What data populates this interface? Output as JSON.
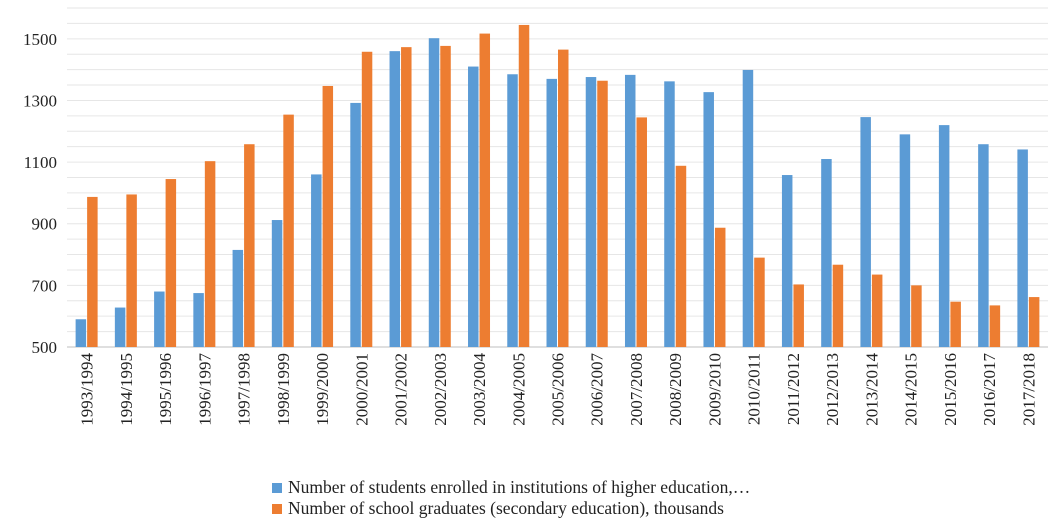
{
  "chart_data": {
    "type": "bar",
    "categories": [
      "1993/1994",
      "1994/1995",
      "1995/1996",
      "1996/1997",
      "1997/1998",
      "1998/1999",
      "1999/2000",
      "2000/2001",
      "2001/2002",
      "2002/2003",
      "2003/2004",
      "2004/2005",
      "2005/2006",
      "2006/2007",
      "2007/2008",
      "2008/2009",
      "2009/2010",
      "2010/2011",
      "2011/2012",
      "2012/2013",
      "2013/2014",
      "2014/2015",
      "2015/2016",
      "2016/2017",
      "2017/2018"
    ],
    "series": [
      {
        "name": "Number of students enrolled in institutions of higher education,…",
        "color": "#5B9BD5",
        "values": [
          590,
          628,
          680,
          675,
          815,
          912,
          1060,
          1292,
          1460,
          1502,
          1410,
          1385,
          1370,
          1376,
          1383,
          1362,
          1327,
          1399,
          1058,
          1110,
          1246,
          1190,
          1220,
          1158,
          1141
        ]
      },
      {
        "name": "Number of school graduates (secondary education), thousands",
        "color": "#ED7D31",
        "values": [
          987,
          995,
          1045,
          1103,
          1158,
          1254,
          1347,
          1458,
          1473,
          1477,
          1517,
          1545,
          1465,
          1364,
          1245,
          1088,
          887,
          790,
          703,
          767,
          735,
          700,
          647,
          635,
          662
        ]
      }
    ],
    "y_ticks": [
      "500",
      "700",
      "900",
      "1100",
      "1300",
      "1500"
    ],
    "ylim": [
      500,
      1600
    ],
    "grid": true,
    "legend_position": "bottom"
  }
}
